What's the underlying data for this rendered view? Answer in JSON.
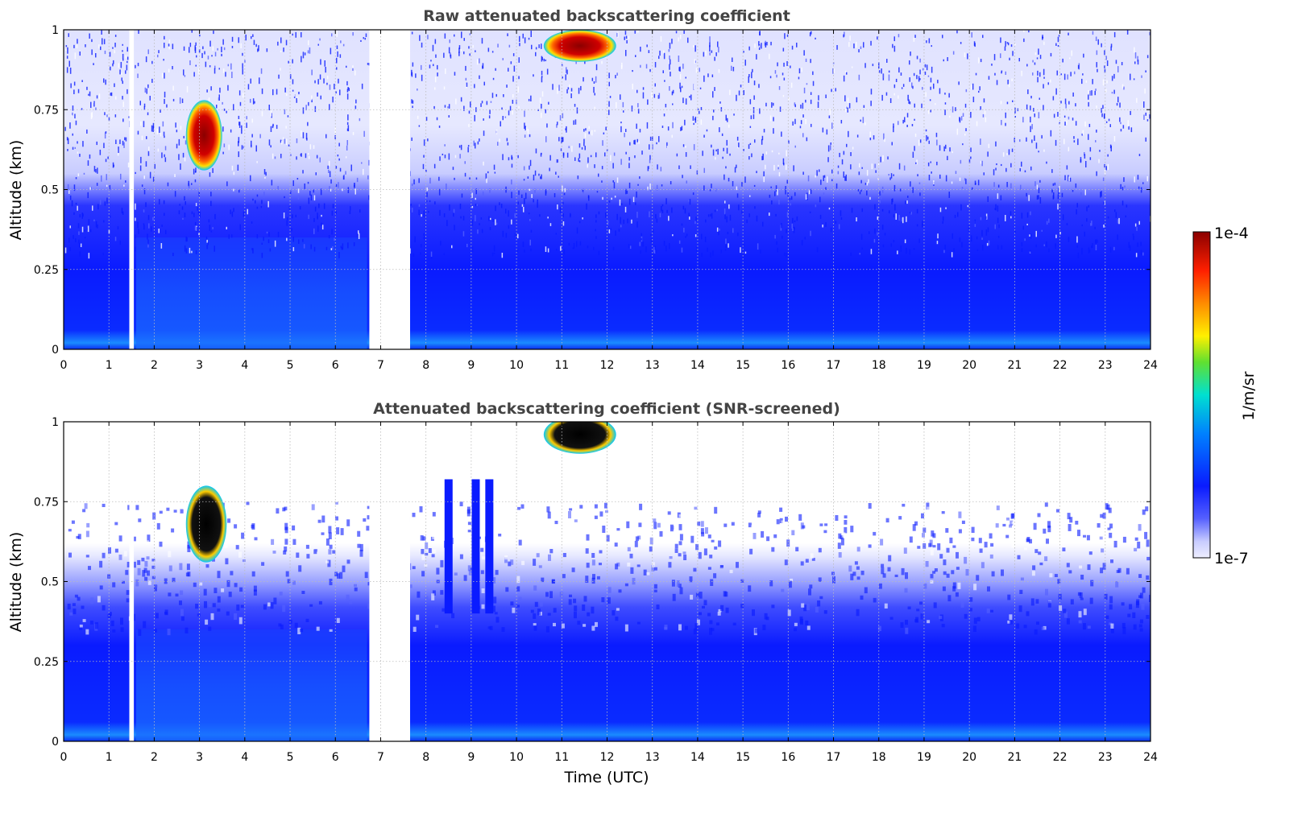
{
  "chart_data": [
    {
      "type": "heatmap",
      "title": "Raw attenuated backscattering coefficient",
      "xlabel": "",
      "ylabel": "Altitude (km)",
      "xlim": [
        0,
        24
      ],
      "ylim": [
        0,
        1
      ],
      "xticks": [
        "0",
        "1",
        "2",
        "3",
        "4",
        "5",
        "6",
        "7",
        "8",
        "9",
        "10",
        "11",
        "12",
        "13",
        "14",
        "15",
        "16",
        "17",
        "18",
        "19",
        "20",
        "21",
        "22",
        "23",
        "24"
      ],
      "yticks": [
        "0",
        "0.25",
        "0.5",
        "0.75",
        "1"
      ],
      "grid": true,
      "data_gaps_utc": [
        [
          1.45,
          1.55
        ],
        [
          6.75,
          7.65
        ]
      ],
      "features": [
        {
          "label": "",
          "x_range_utc": [
            2.7,
            3.5
          ],
          "altitude_km": [
            0.56,
            0.78
          ],
          "intensity": "high"
        },
        {
          "label": "",
          "x_range_utc": [
            10.6,
            12.2
          ],
          "altitude_km": [
            0.9,
            1.0
          ],
          "intensity": "high"
        }
      ]
    },
    {
      "type": "heatmap",
      "title": "Attenuated backscattering coefficient (SNR-screened)",
      "xlabel": "Time (UTC)",
      "ylabel": "Altitude (km)",
      "xlim": [
        0,
        24
      ],
      "ylim": [
        0,
        1
      ],
      "xticks": [
        "0",
        "1",
        "2",
        "3",
        "4",
        "5",
        "6",
        "7",
        "8",
        "9",
        "10",
        "11",
        "12",
        "13",
        "14",
        "15",
        "16",
        "17",
        "18",
        "19",
        "20",
        "21",
        "22",
        "23",
        "24"
      ],
      "yticks": [
        "0",
        "0.25",
        "0.5",
        "0.75",
        "1"
      ],
      "grid": true,
      "data_gaps_utc": [
        [
          1.45,
          1.55
        ],
        [
          6.75,
          7.65
        ]
      ]
    }
  ],
  "colorbar": {
    "label": "1/m/sr",
    "min_label": "1e-7",
    "max_label": "1e-4",
    "scale": "log",
    "colormap": [
      "#eeeeff",
      "#0a1bff",
      "#00c8ff",
      "#fff000",
      "#ff3300",
      "#8b0000"
    ]
  }
}
